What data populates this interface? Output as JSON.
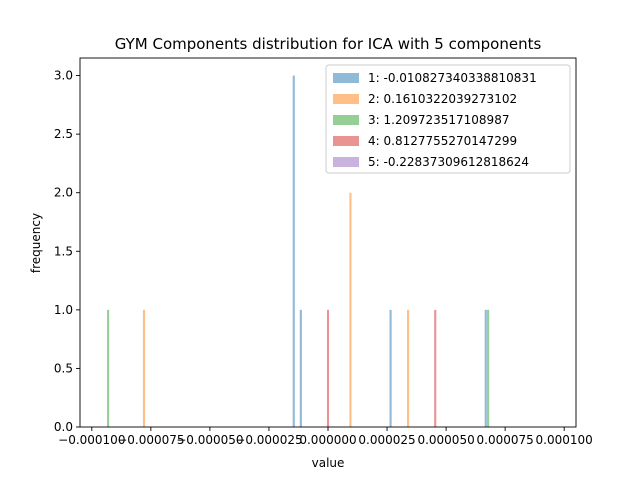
{
  "chart_data": {
    "type": "bar",
    "title": "GYM Components distribution for ICA with 5 components",
    "xlabel": "value",
    "ylabel": "frequency",
    "xlim": [
      -0.000105,
      0.000105
    ],
    "ylim": [
      0,
      3.15
    ],
    "x_ticks": [
      -0.0001,
      -7.5e-05,
      -5e-05,
      -2.5e-05,
      0.0,
      2.5e-05,
      5e-05,
      7.5e-05,
      0.0001
    ],
    "x_tick_labels": [
      "−0.000100",
      "−0.000075",
      "−0.000050",
      "−0.000025",
      "0.000000",
      "0.000025",
      "0.000050",
      "0.000075",
      "0.000100"
    ],
    "y_ticks": [
      0.0,
      0.5,
      1.0,
      1.5,
      2.0,
      2.5,
      3.0
    ],
    "y_tick_labels": [
      "0.0",
      "0.5",
      "1.0",
      "1.5",
      "2.0",
      "2.5",
      "3.0"
    ],
    "bin_width": 9e-07,
    "legend_position": "top-right",
    "grid": false,
    "series": [
      {
        "name": "1: -0.010827340338810831",
        "color": "#1f77b4",
        "bins": [
          {
            "x": -1.45e-05,
            "count": 3
          },
          {
            "x": -1.15e-05,
            "count": 1
          },
          {
            "x": 2.65e-05,
            "count": 1
          },
          {
            "x": 6.68e-05,
            "count": 1
          }
        ]
      },
      {
        "name": "2: 0.1610322039273102",
        "color": "#ff7f0e",
        "bins": [
          {
            "x": -7.79e-05,
            "count": 1
          },
          {
            "x": 9.5e-06,
            "count": 2
          },
          {
            "x": 3.39e-05,
            "count": 1
          }
        ]
      },
      {
        "name": "3: 1.209723517108987",
        "color": "#2ca02c",
        "bins": [
          {
            "x": -9.31e-05,
            "count": 1
          },
          {
            "x": 6.78e-05,
            "count": 1
          }
        ]
      },
      {
        "name": "4: 0.8127755270147299",
        "color": "#d62728",
        "bins": [
          {
            "x": 0.0,
            "count": 1
          },
          {
            "x": 4.54e-05,
            "count": 1
          }
        ]
      },
      {
        "name": "5: -0.22837309612818624",
        "color": "#9467bd",
        "bins": []
      }
    ]
  }
}
